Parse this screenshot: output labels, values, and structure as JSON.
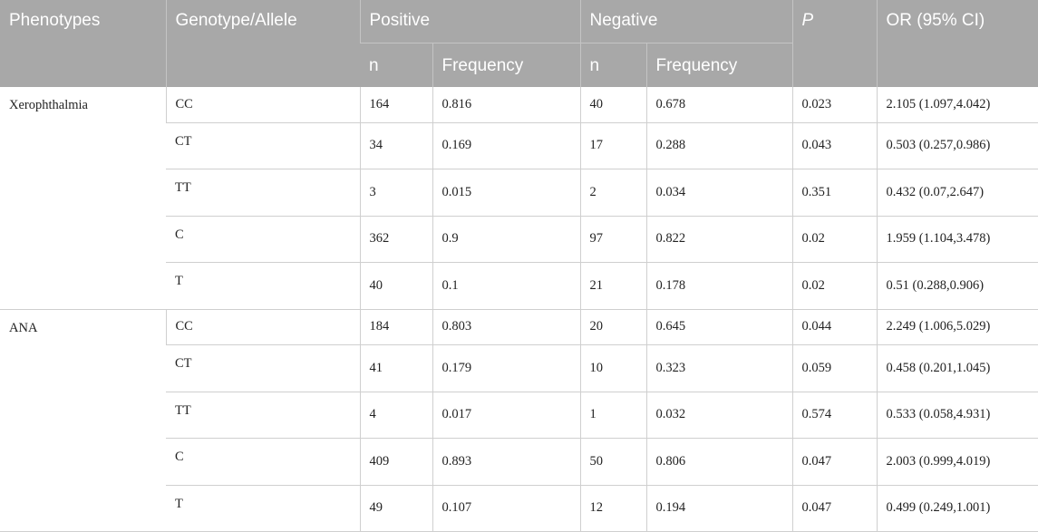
{
  "header": {
    "phenotypes": "Phenotypes",
    "genotype": "Genotype/Allele",
    "positive": "Positive",
    "negative": "Negative",
    "p": "P",
    "or": "OR (95% CI)",
    "n": "n",
    "frequency": "Frequency"
  },
  "groups": [
    {
      "phenotype": "Xerophthalmia",
      "rows": [
        {
          "genotype": "CC",
          "pos_n": "164",
          "pos_freq": "0.816",
          "neg_n": "40",
          "neg_freq": "0.678",
          "p": "0.023",
          "or": "2.105 (1.097,4.042)"
        },
        {
          "genotype": "CT",
          "pos_n": "34",
          "pos_freq": "0.169",
          "neg_n": "17",
          "neg_freq": "0.288",
          "p": "0.043",
          "or": "0.503 (0.257,0.986)"
        },
        {
          "genotype": "TT",
          "pos_n": "3",
          "pos_freq": "0.015",
          "neg_n": "2",
          "neg_freq": "0.034",
          "p": "0.351",
          "or": "0.432 (0.07,2.647)"
        },
        {
          "genotype": "C",
          "pos_n": "362",
          "pos_freq": "0.9",
          "neg_n": "97",
          "neg_freq": "0.822",
          "p": "0.02",
          "or": "1.959 (1.104,3.478)"
        },
        {
          "genotype": "T",
          "pos_n": "40",
          "pos_freq": "0.1",
          "neg_n": "21",
          "neg_freq": "0.178",
          "p": "0.02",
          "or": "0.51 (0.288,0.906)"
        }
      ]
    },
    {
      "phenotype": "ANA",
      "rows": [
        {
          "genotype": "CC",
          "pos_n": "184",
          "pos_freq": "0.803",
          "neg_n": "20",
          "neg_freq": "0.645",
          "p": "0.044",
          "or": "2.249 (1.006,5.029)"
        },
        {
          "genotype": "CT",
          "pos_n": "41",
          "pos_freq": "0.179",
          "neg_n": "10",
          "neg_freq": "0.323",
          "p": "0.059",
          "or": "0.458 (0.201,1.045)"
        },
        {
          "genotype": "TT",
          "pos_n": "4",
          "pos_freq": "0.017",
          "neg_n": "1",
          "neg_freq": "0.032",
          "p": "0.574",
          "or": "0.533 (0.058,4.931)"
        },
        {
          "genotype": "C",
          "pos_n": "409",
          "pos_freq": "0.893",
          "neg_n": "50",
          "neg_freq": "0.806",
          "p": "0.047",
          "or": "2.003 (0.999,4.019)"
        },
        {
          "genotype": "T",
          "pos_n": "49",
          "pos_freq": "0.107",
          "neg_n": "12",
          "neg_freq": "0.194",
          "p": "0.047",
          "or": "0.499 (0.249,1.001)"
        }
      ]
    }
  ]
}
